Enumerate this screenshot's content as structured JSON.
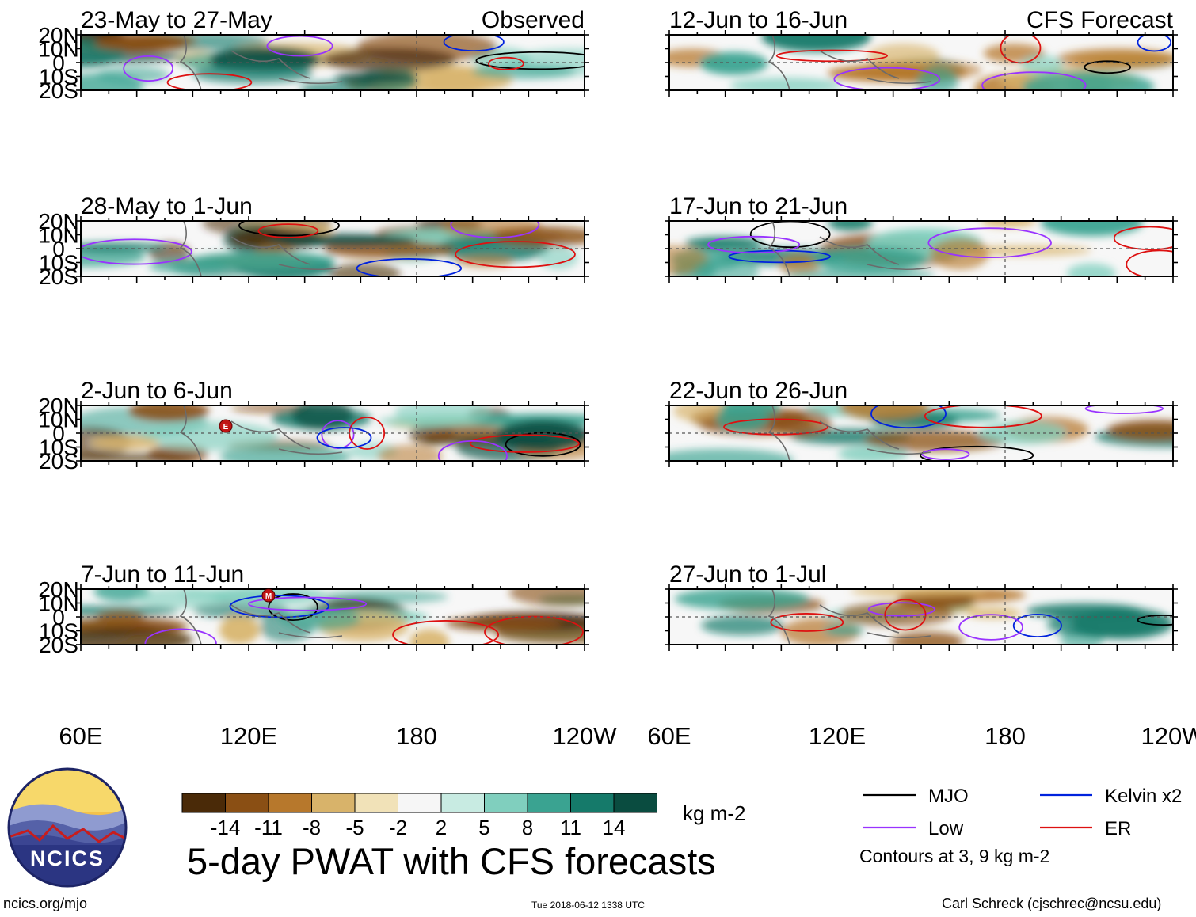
{
  "observed_label": "Observed",
  "forecast_label": "CFS Forecast",
  "lat_labels": [
    "20N",
    "10N",
    "0",
    "10S",
    "20S"
  ],
  "lon_labels": [
    "60E",
    "120E",
    "180",
    "120W"
  ],
  "panels_left": [
    {
      "title": "23-May to 27-May"
    },
    {
      "title": "28-May to 1-Jun"
    },
    {
      "title": "2-Jun to 6-Jun"
    },
    {
      "title": "7-Jun to 11-Jun"
    }
  ],
  "panels_right": [
    {
      "title": "12-Jun to 16-Jun"
    },
    {
      "title": "17-Jun to 21-Jun"
    },
    {
      "title": "22-Jun to 26-Jun"
    },
    {
      "title": "27-Jun to 1-Jul"
    }
  ],
  "storm_markers": [
    "E",
    "M"
  ],
  "colorbar": {
    "labels": [
      "-14",
      "-11",
      "-8",
      "-5",
      "-2",
      "2",
      "5",
      "8",
      "11",
      "14"
    ],
    "units": "kg m-2",
    "colors": [
      "#4a2a08",
      "#8a4f14",
      "#b7782c",
      "#d8b36a",
      "#f1e2b8",
      "#f6f6f6",
      "#c8ebe2",
      "#80cfbe",
      "#3aa391",
      "#157a6a",
      "#0a4c40"
    ]
  },
  "legend": {
    "items": [
      {
        "label": "MJO",
        "color": "#000000"
      },
      {
        "label": "Low",
        "color": "#9933ff"
      },
      {
        "label": "Kelvin x2",
        "color": "#0022dd"
      },
      {
        "label": "ER",
        "color": "#dd1111"
      }
    ],
    "note": "Contours at 3, 9 kg m-2"
  },
  "main_title": "5-day PWAT with CFS forecasts",
  "logo_text": "NCICS",
  "footer": {
    "site": "ncics.org/mjo",
    "timestamp": "Tue 2018-06-12 1338 UTC",
    "author": "Carl Schreck (cjschrec@ncsu.edu)"
  }
}
